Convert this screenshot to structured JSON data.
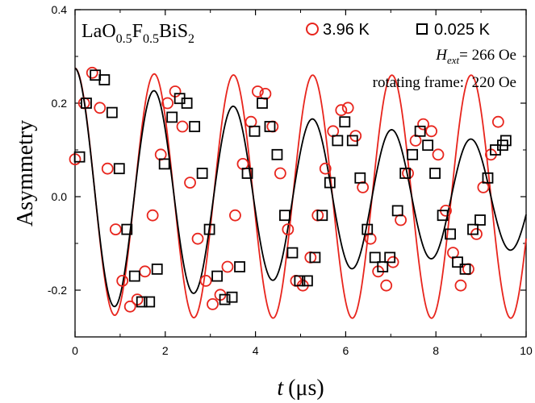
{
  "chart_data": {
    "type": "scatter",
    "sample": {
      "main": "LaO",
      "sub1": "0.5",
      "mid": "F",
      "sub2": "0.5",
      "end": "BiS",
      "sub3": "2"
    },
    "xlabel": {
      "var": "t",
      "unit": "(μs)"
    },
    "ylabel": "Asymmetry",
    "xlim": [
      0,
      10
    ],
    "ylim": [
      -0.3,
      0.4
    ],
    "xticks": [
      "0",
      "2",
      "4",
      "6",
      "8",
      "10"
    ],
    "yticks": [
      "-0.2",
      "0.0",
      "0.2",
      "0.4"
    ],
    "annotations": {
      "field_var": "H",
      "field_sub": "ext",
      "field_value": "= 266 Oe",
      "frame": "rotating frame:  220 Oe"
    },
    "legend": {
      "position": "top-right"
    },
    "series": [
      {
        "name": "3.96 K",
        "color": "#e8251d",
        "marker": "circle",
        "x": [
          0.0,
          0.2,
          0.38,
          0.55,
          0.72,
          0.9,
          1.05,
          1.22,
          1.38,
          1.55,
          1.72,
          1.9,
          2.05,
          2.22,
          2.38,
          2.55,
          2.72,
          2.9,
          3.05,
          3.22,
          3.38,
          3.55,
          3.72,
          3.9,
          4.05,
          4.22,
          4.38,
          4.55,
          4.72,
          4.9,
          5.05,
          5.22,
          5.38,
          5.55,
          5.72,
          5.9,
          6.05,
          6.22,
          6.38,
          6.55,
          6.72,
          6.9,
          7.05,
          7.22,
          7.38,
          7.55,
          7.72,
          7.9,
          8.05,
          8.22,
          8.38,
          8.55,
          8.72,
          8.9,
          9.05,
          9.22,
          9.38
        ],
        "y": [
          0.08,
          0.2,
          0.265,
          0.19,
          0.06,
          -0.07,
          -0.18,
          -0.235,
          -0.22,
          -0.16,
          -0.04,
          0.09,
          0.2,
          0.225,
          0.15,
          0.03,
          -0.09,
          -0.18,
          -0.23,
          -0.21,
          -0.15,
          -0.04,
          0.07,
          0.16,
          0.225,
          0.22,
          0.15,
          0.05,
          -0.07,
          -0.18,
          -0.19,
          -0.13,
          -0.04,
          0.06,
          0.14,
          0.185,
          0.19,
          0.13,
          0.02,
          -0.09,
          -0.16,
          -0.19,
          -0.14,
          -0.05,
          0.05,
          0.12,
          0.155,
          0.14,
          0.09,
          -0.03,
          -0.12,
          -0.19,
          -0.155,
          -0.08,
          0.02,
          0.09,
          0.16
        ]
      },
      {
        "name": "0.025 K",
        "color": "#000000",
        "marker": "square",
        "x": [
          0.1,
          0.25,
          0.45,
          0.65,
          0.82,
          0.98,
          1.15,
          1.32,
          1.48,
          1.65,
          1.82,
          1.98,
          2.15,
          2.32,
          2.48,
          2.65,
          2.82,
          2.98,
          3.15,
          3.32,
          3.48,
          3.65,
          3.82,
          3.98,
          4.15,
          4.32,
          4.48,
          4.65,
          4.82,
          4.98,
          5.15,
          5.32,
          5.48,
          5.65,
          5.82,
          5.98,
          6.15,
          6.32,
          6.48,
          6.65,
          6.82,
          6.98,
          7.15,
          7.32,
          7.48,
          7.65,
          7.82,
          7.98,
          8.15,
          8.32,
          8.48,
          8.65,
          8.82,
          8.98,
          9.15,
          9.32,
          9.48,
          9.55
        ],
        "y": [
          0.085,
          0.2,
          0.26,
          0.25,
          0.18,
          0.06,
          -0.07,
          -0.17,
          -0.225,
          -0.225,
          -0.155,
          0.07,
          0.17,
          0.21,
          0.2,
          0.15,
          0.05,
          -0.07,
          -0.17,
          -0.22,
          -0.215,
          -0.15,
          0.05,
          0.14,
          0.2,
          0.15,
          0.09,
          -0.04,
          -0.12,
          -0.18,
          -0.18,
          -0.13,
          -0.04,
          0.03,
          0.12,
          0.16,
          0.12,
          0.04,
          -0.07,
          -0.13,
          -0.15,
          -0.13,
          -0.03,
          0.05,
          0.09,
          0.14,
          0.11,
          0.05,
          -0.04,
          -0.08,
          -0.14,
          -0.155,
          -0.07,
          -0.05,
          0.04,
          0.1,
          0.11,
          0.12
        ]
      }
    ],
    "fits": [
      {
        "name": "fit 3.96 K",
        "color": "#e8251d",
        "A": 0.26,
        "decay": 0.0,
        "freq": 0.5694,
        "phase": 0.0
      },
      {
        "name": "fit 0.025 K",
        "color": "#000000",
        "A": 0.26,
        "decay": 0.085,
        "freq": 0.5694,
        "phase": 0.0
      }
    ]
  }
}
